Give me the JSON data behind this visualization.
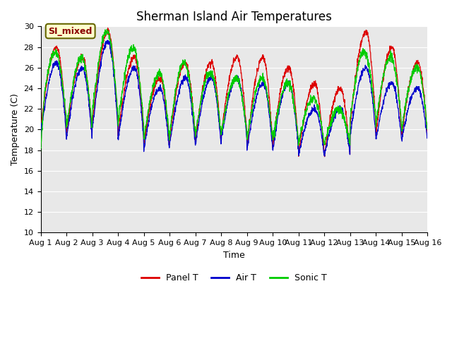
{
  "title": "Sherman Island Air Temperatures",
  "xlabel": "Time",
  "ylabel": "Temperature (C)",
  "ylim": [
    10,
    30
  ],
  "annotation_text": "SI_mixed",
  "bg_color": "#e8e8e8",
  "panel_color": "#dd0000",
  "air_color": "#0000cc",
  "sonic_color": "#00cc00",
  "legend_labels": [
    "Panel T",
    "Air T",
    "Sonic T"
  ],
  "x_tick_labels": [
    "Aug 1",
    "Aug 2",
    "Aug 3",
    "Aug 4",
    "Aug 5",
    "Aug 6",
    "Aug 7",
    "Aug 8",
    "Aug 9",
    "Aug 10",
    "Aug 11",
    "Aug 12",
    "Aug 13",
    "Aug 14",
    "Aug 15",
    "Aug 16"
  ],
  "num_days": 15,
  "points_per_day": 144,
  "title_fontsize": 12,
  "label_fontsize": 9,
  "tick_fontsize": 8
}
